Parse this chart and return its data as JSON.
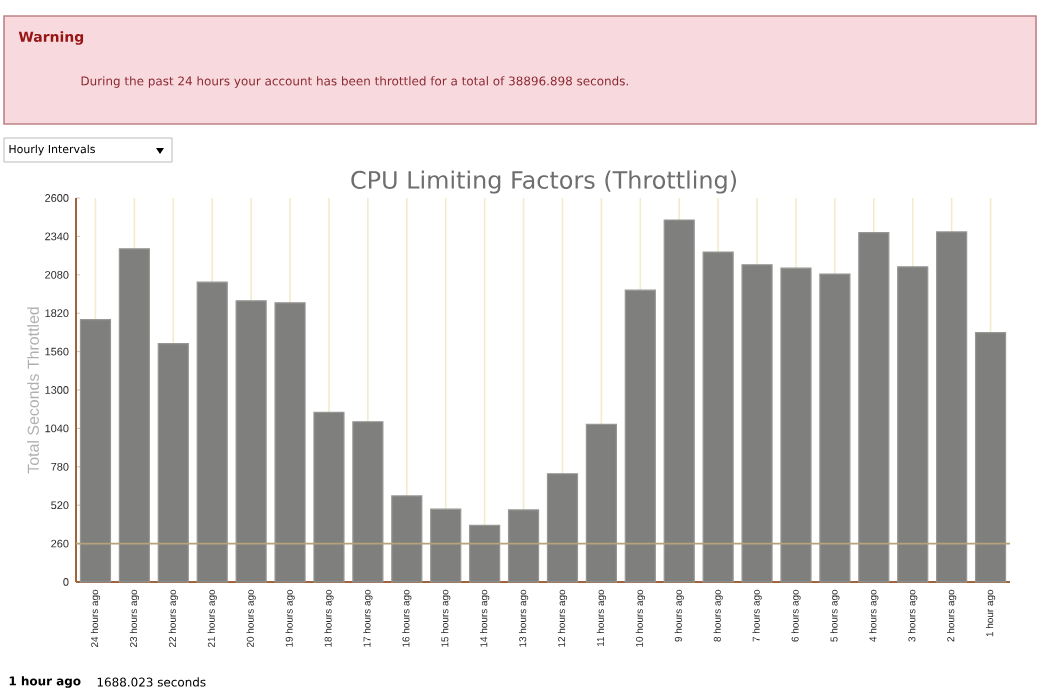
{
  "chart_data": {
    "type": "bar",
    "title": "CPU Limiting Factors (Throttling)",
    "ylabel": "Total Seconds Throttled",
    "categories": [
      "24 hours ago",
      "23 hours ago",
      "22 hours ago",
      "21 hours ago",
      "20 hours ago",
      "19 hours ago",
      "18 hours ago",
      "17 hours ago",
      "16 hours ago",
      "15 hours ago",
      "14 hours ago",
      "13 hours ago",
      "12 hours ago",
      "11 hours ago",
      "10 hours ago",
      "9 hours ago",
      "8 hours ago",
      "7 hours ago",
      "6 hours ago",
      "5 hours ago",
      "4 hours ago",
      "3 hours ago",
      "2 hours ago",
      "1 hour ago"
    ],
    "values": [
      1777,
      2256,
      1614,
      2030,
      1904,
      1890,
      1149,
      1085,
      583,
      493,
      384,
      488,
      733,
      1067,
      1976,
      2451,
      2234,
      2148,
      2125,
      2085,
      2365,
      2134,
      2370,
      1688.023
    ],
    "color": "#7f7f7d",
    "ylim": [
      0,
      2600
    ],
    "yticks": [
      0,
      260,
      520,
      780,
      1040,
      1300,
      1560,
      1820,
      2080,
      2340,
      2600
    ],
    "grid": "x",
    "ref_lines": [
      {
        "axis": "y",
        "value": 260,
        "color": "#b8a27e"
      }
    ],
    "annotations": [
      "Warning",
      "During the past 24 hours your account has been throttled for a total of 38896.898 seconds.",
      "Hourly Intervals",
      "1 hour ago",
      "1688.023 seconds"
    ]
  }
}
